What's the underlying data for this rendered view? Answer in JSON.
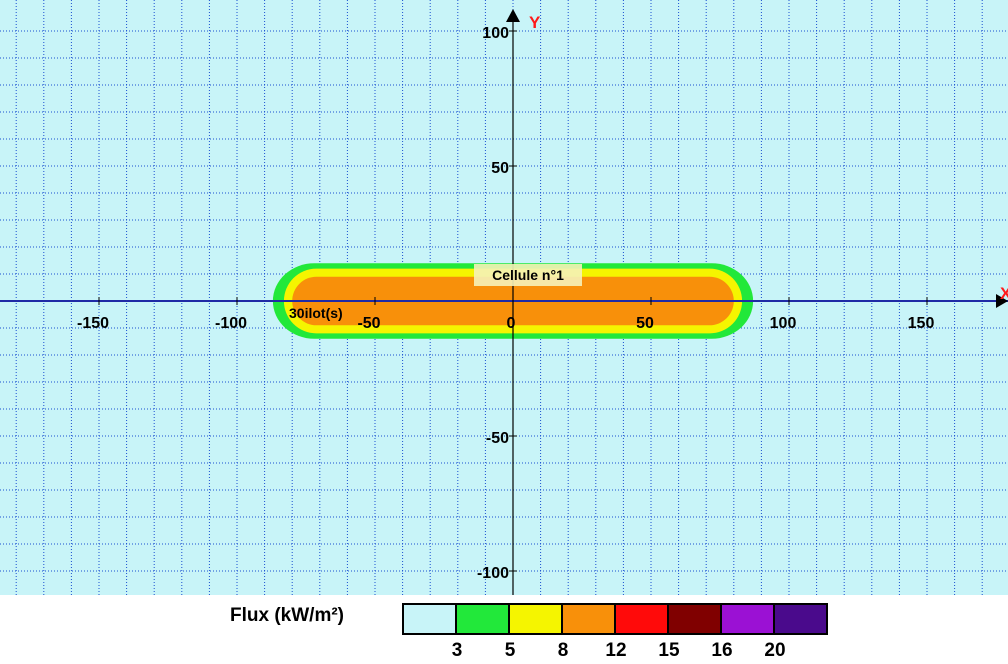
{
  "plot": {
    "background": "#c8f4f8",
    "grid_color": "#1a4fd0",
    "axis_color": "#1f2aa6",
    "axis_y_label": "Y",
    "axis_x_label": "X",
    "axis_label_color": "#ff1a1a",
    "x_ticks": [
      -150,
      -100,
      -50,
      0,
      50,
      100,
      150
    ],
    "y_ticks": [
      100,
      50,
      -50,
      -100
    ],
    "x_range": [
      -183,
      178
    ],
    "y_range": [
      -105,
      105
    ],
    "cell_label": "Cellule n°1",
    "ilot_label": "30ilot(s)"
  },
  "zones": [
    {
      "name": "3 kW/m²",
      "color": "#22e83a",
      "x_min": -87,
      "x_max": 87,
      "y_min": -14,
      "y_max": 14
    },
    {
      "name": "5 kW/m²",
      "color": "#f5f500",
      "x_min": -83,
      "x_max": 83,
      "y_min": -12,
      "y_max": 12
    },
    {
      "name": "8 kW/m²",
      "color": "#f8900a",
      "x_min": -80,
      "x_max": 80,
      "y_min": -9,
      "y_max": 9
    }
  ],
  "legend": {
    "title": "Flux (kW/m²)",
    "swatches": [
      "#c8f4f8",
      "#22e83a",
      "#f5f500",
      "#f8900a",
      "#ff0a0a",
      "#800000",
      "#9b11d4",
      "#4a0a8c"
    ],
    "ticks": [
      "3",
      "5",
      "8",
      "12",
      "15",
      "16",
      "20"
    ]
  }
}
